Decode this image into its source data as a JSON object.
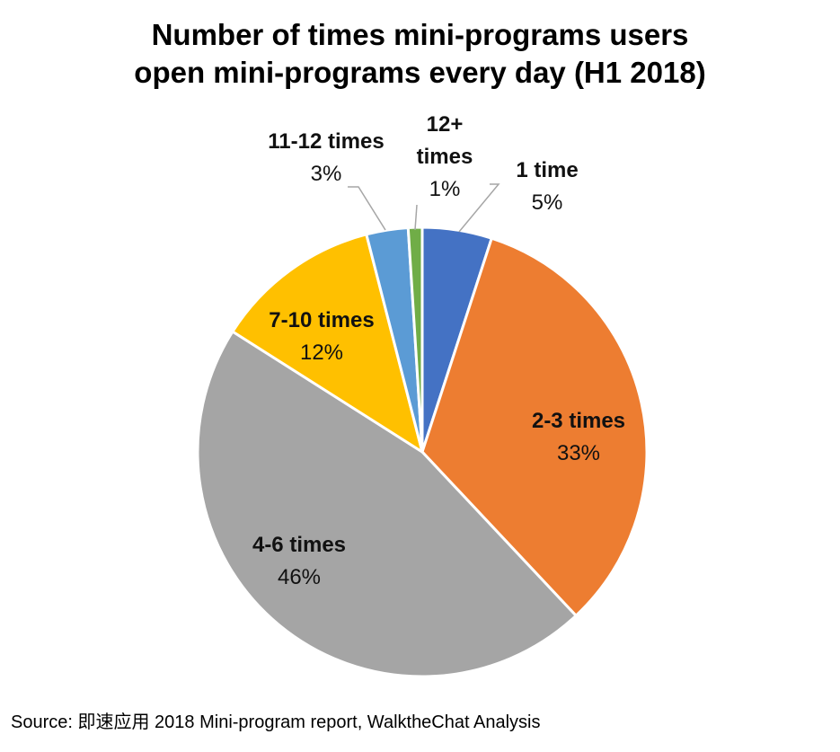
{
  "chart_data": {
    "type": "pie",
    "title_lines": [
      "Number of times mini-programs users",
      "open mini-programs every day (H1 2018)"
    ],
    "slices": [
      {
        "label": "1 time",
        "pct_label": "5%",
        "value": 5,
        "color": "#4472C4"
      },
      {
        "label": "2-3 times",
        "pct_label": "33%",
        "value": 33,
        "color": "#ED7D31"
      },
      {
        "label": "4-6 times",
        "pct_label": "46%",
        "value": 46,
        "color": "#A5A5A5"
      },
      {
        "label": "7-10 times",
        "pct_label": "12%",
        "value": 12,
        "color": "#FFC000"
      },
      {
        "label": "11-12 times",
        "pct_label": "3%",
        "value": 3,
        "color": "#5B9BD5"
      },
      {
        "label": "12+ times",
        "pct_label": "1%",
        "value": 1,
        "color": "#70AD47"
      }
    ],
    "start_angle_deg": 0,
    "direction": "clockwise"
  },
  "source": "Source: 即速应用 2018 Mini-program report, WalktheChat Analysis"
}
